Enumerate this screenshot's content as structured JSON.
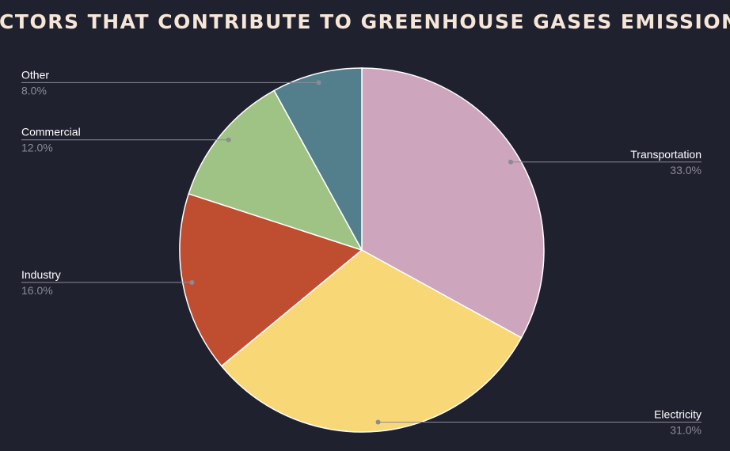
{
  "chart_data": {
    "type": "pie",
    "title": "SECTORS THAT CONTRIBUTE TO GREENHOUSE GASES EMISSIONS",
    "categories": [
      "Transportation",
      "Electricity",
      "Industry",
      "Commercial",
      "Other"
    ],
    "values": [
      33,
      31,
      16,
      12,
      8
    ],
    "value_labels": [
      "33.0%",
      "31.0%",
      "16.0%",
      "12.0%",
      "8.0%"
    ],
    "colors": [
      "#cda5bc",
      "#f8d776",
      "#bf4d30",
      "#9fc385",
      "#537f8d"
    ]
  }
}
